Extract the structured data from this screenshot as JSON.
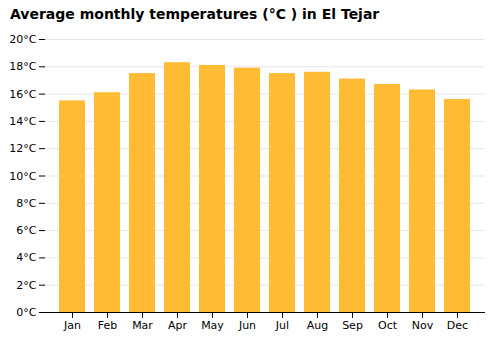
{
  "chart_data": {
    "type": "bar",
    "title": "Average monthly temperatures (°C ) in El Tejar",
    "categories": [
      "Jan",
      "Feb",
      "Mar",
      "Apr",
      "May",
      "Jun",
      "Jul",
      "Aug",
      "Sep",
      "Oct",
      "Nov",
      "Dec"
    ],
    "values": [
      15.5,
      16.1,
      17.5,
      18.3,
      18.1,
      17.9,
      17.5,
      17.6,
      17.1,
      16.7,
      16.3,
      15.6
    ],
    "color": "#FFBB33",
    "ylim": [
      0,
      20
    ],
    "yticks": [
      {
        "value": 0,
        "label": "0°C"
      },
      {
        "value": 2,
        "label": "2°C"
      },
      {
        "value": 4,
        "label": "4°C"
      },
      {
        "value": 6,
        "label": "6°C"
      },
      {
        "value": 8,
        "label": "8°C"
      },
      {
        "value": 10,
        "label": "10°C"
      },
      {
        "value": 12,
        "label": "12°C"
      },
      {
        "value": 14,
        "label": "14°C"
      },
      {
        "value": 16,
        "label": "16°C"
      },
      {
        "value": 18,
        "label": "18°C"
      },
      {
        "value": 20,
        "label": "20°C"
      }
    ],
    "grid": true
  }
}
